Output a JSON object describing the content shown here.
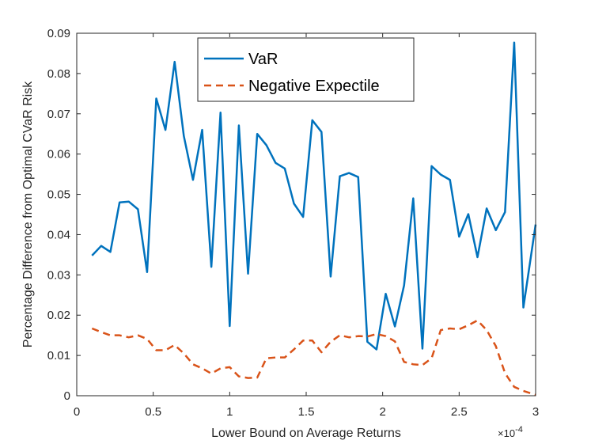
{
  "chart_data": {
    "type": "line",
    "title": "",
    "xlabel": "Lower Bound on Average Returns",
    "ylabel": "Percentage Difference from Optimal CVaR Risk",
    "xlim": [
      0,
      3
    ],
    "ylim": [
      0,
      0.09
    ],
    "x_exponent_label": {
      "base": "×10",
      "exp": "-4"
    },
    "x_ticks": [
      0,
      0.5,
      1,
      1.5,
      2,
      2.5,
      3
    ],
    "x_tick_labels": [
      "0",
      "0.5",
      "1",
      "1.5",
      "2",
      "2.5",
      "3"
    ],
    "y_ticks": [
      0,
      0.01,
      0.02,
      0.03,
      0.04,
      0.05,
      0.06,
      0.07,
      0.08,
      0.09
    ],
    "y_tick_labels": [
      "0",
      "0.01",
      "0.02",
      "0.03",
      "0.04",
      "0.05",
      "0.06",
      "0.07",
      "0.08",
      "0.09"
    ],
    "grid": false,
    "legend_position": "top-center",
    "x": [
      0.1,
      0.16,
      0.22,
      0.28,
      0.34,
      0.4,
      0.46,
      0.52,
      0.58,
      0.64,
      0.7,
      0.76,
      0.82,
      0.88,
      0.94,
      1.0,
      1.06,
      1.12,
      1.18,
      1.24,
      1.3,
      1.36,
      1.42,
      1.48,
      1.54,
      1.6,
      1.66,
      1.72,
      1.78,
      1.84,
      1.9,
      1.96,
      2.02,
      2.08,
      2.14,
      2.2,
      2.26,
      2.32,
      2.38,
      2.44,
      2.5,
      2.56,
      2.62,
      2.68,
      2.74,
      2.8,
      2.86,
      2.92,
      3.0
    ],
    "series": [
      {
        "name": "VaR",
        "color": "#0072bd",
        "style": "solid",
        "values": [
          0.0348,
          0.0372,
          0.0357,
          0.048,
          0.0482,
          0.0463,
          0.0307,
          0.0738,
          0.066,
          0.0829,
          0.0645,
          0.0536,
          0.066,
          0.032,
          0.0703,
          0.0173,
          0.0671,
          0.0303,
          0.065,
          0.0622,
          0.0578,
          0.0564,
          0.0477,
          0.0444,
          0.0684,
          0.0655,
          0.0296,
          0.0545,
          0.0553,
          0.0543,
          0.0134,
          0.0115,
          0.0253,
          0.0172,
          0.0274,
          0.049,
          0.0117,
          0.057,
          0.0549,
          0.0536,
          0.0395,
          0.0451,
          0.0344,
          0.0465,
          0.0411,
          0.0456,
          0.0877,
          0.0219,
          0.0425
        ]
      },
      {
        "name": "Negative Expectile",
        "color": "#d95319",
        "style": "dashed",
        "values": [
          0.0167,
          0.0158,
          0.015,
          0.015,
          0.0145,
          0.015,
          0.0141,
          0.0113,
          0.0113,
          0.0126,
          0.0105,
          0.0078,
          0.0068,
          0.0055,
          0.0068,
          0.0071,
          0.0048,
          0.0044,
          0.0045,
          0.0093,
          0.0095,
          0.0095,
          0.0115,
          0.0137,
          0.0137,
          0.0108,
          0.0134,
          0.015,
          0.0145,
          0.0148,
          0.0147,
          0.0153,
          0.0148,
          0.0135,
          0.0084,
          0.0078,
          0.0076,
          0.0093,
          0.0163,
          0.0167,
          0.0165,
          0.0175,
          0.0187,
          0.0163,
          0.0123,
          0.0056,
          0.0022,
          0.0012,
          0.0002
        ]
      }
    ]
  }
}
